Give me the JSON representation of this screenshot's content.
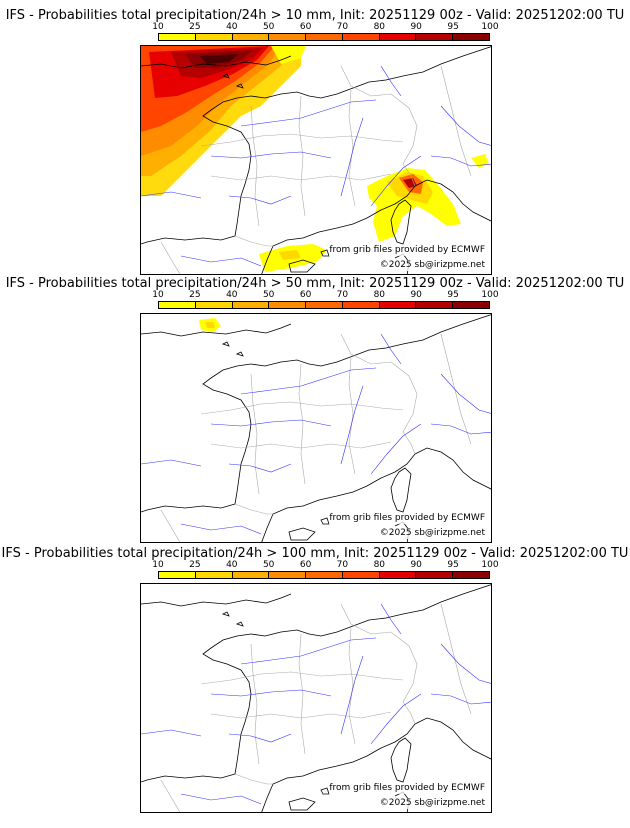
{
  "colors": {
    "bins": [
      "#ffff00",
      "#ffd800",
      "#ffaf00",
      "#ff8c00",
      "#ff6a00",
      "#ff4500",
      "#e60000",
      "#b40000",
      "#8b0000",
      "#4a0000"
    ],
    "coast": "#000000",
    "rivers": "#3333ff",
    "borders": "#aaaaaa"
  },
  "legend": {
    "ticks": [
      "10",
      "25",
      "40",
      "50",
      "60",
      "70",
      "80",
      "90",
      "95",
      "100"
    ]
  },
  "panels": [
    {
      "title": "IFS - Probabilities total precipitation/24h > 10 mm, Init: 20251129 00z - Valid: 20251202:00 TU",
      "source_note": "from grib files provided by ECMWF",
      "copyright": "©2025 sb@irizpme.net"
    },
    {
      "title": "IFS - Probabilities total precipitation/24h > 50 mm, Init: 20251129 00z - Valid: 20251202:00 TU",
      "source_note": "from grib files provided by ECMWF",
      "copyright": "©2025 sb@irizpme.net"
    },
    {
      "title": "IFS - Probabilities total precipitation/24h > 100 mm, Init: 20251129 00z - Valid: 20251202:00 TU",
      "source_note": "from grib files provided by ECMWF",
      "copyright": "©2025 sb@irizpme.net"
    }
  ]
}
